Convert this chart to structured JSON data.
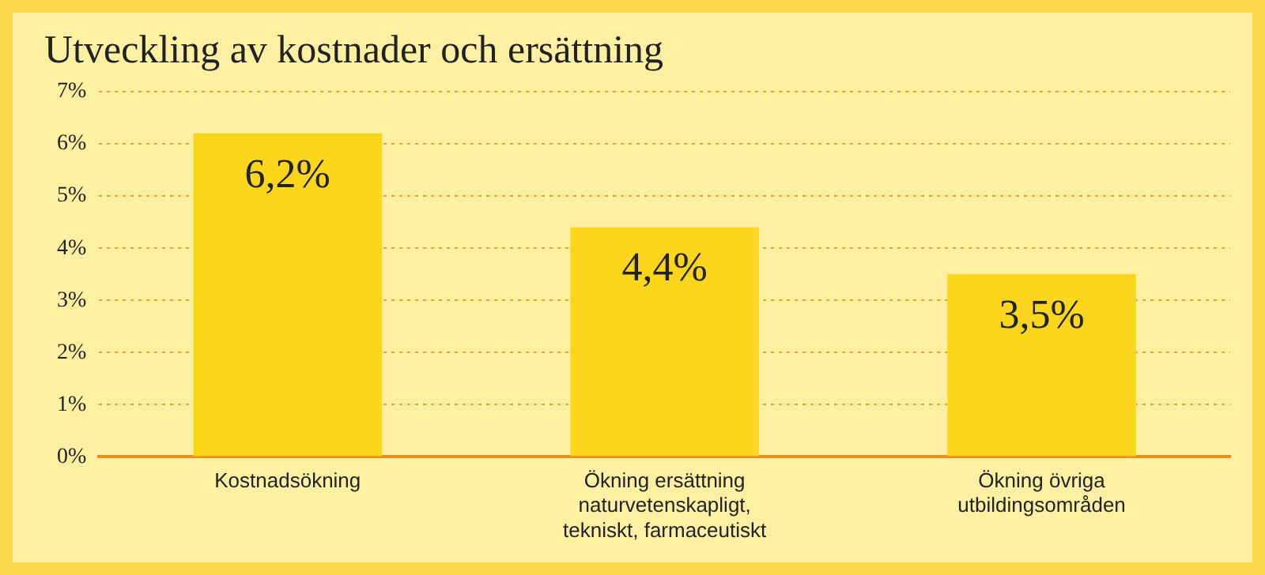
{
  "chart_data": {
    "type": "bar",
    "title": "Utveckling av kostnader och ersättning",
    "categories": [
      "Kostnadsökning",
      "Ökning ersättning\nnaturvetenskapligt,\ntekniskt, farmaceutiskt",
      "Ökning övriga\nutbildingsområden"
    ],
    "values": [
      6.2,
      4.4,
      3.5
    ],
    "color": "#fcd51d",
    "value_labels": [
      "6,2%",
      "4,4%",
      "3,5%"
    ],
    "ylim": [
      0,
      7
    ],
    "yticks": [
      {
        "value": 0,
        "label": "0%"
      },
      {
        "value": 1,
        "label": "1%"
      },
      {
        "value": 2,
        "label": "2%"
      },
      {
        "value": 3,
        "label": "3%"
      },
      {
        "value": 4,
        "label": "4%"
      },
      {
        "value": 5,
        "label": "5%"
      },
      {
        "value": 6,
        "label": "6%"
      },
      {
        "value": 7,
        "label": "7%"
      }
    ],
    "grid": "y",
    "legend": false
  }
}
